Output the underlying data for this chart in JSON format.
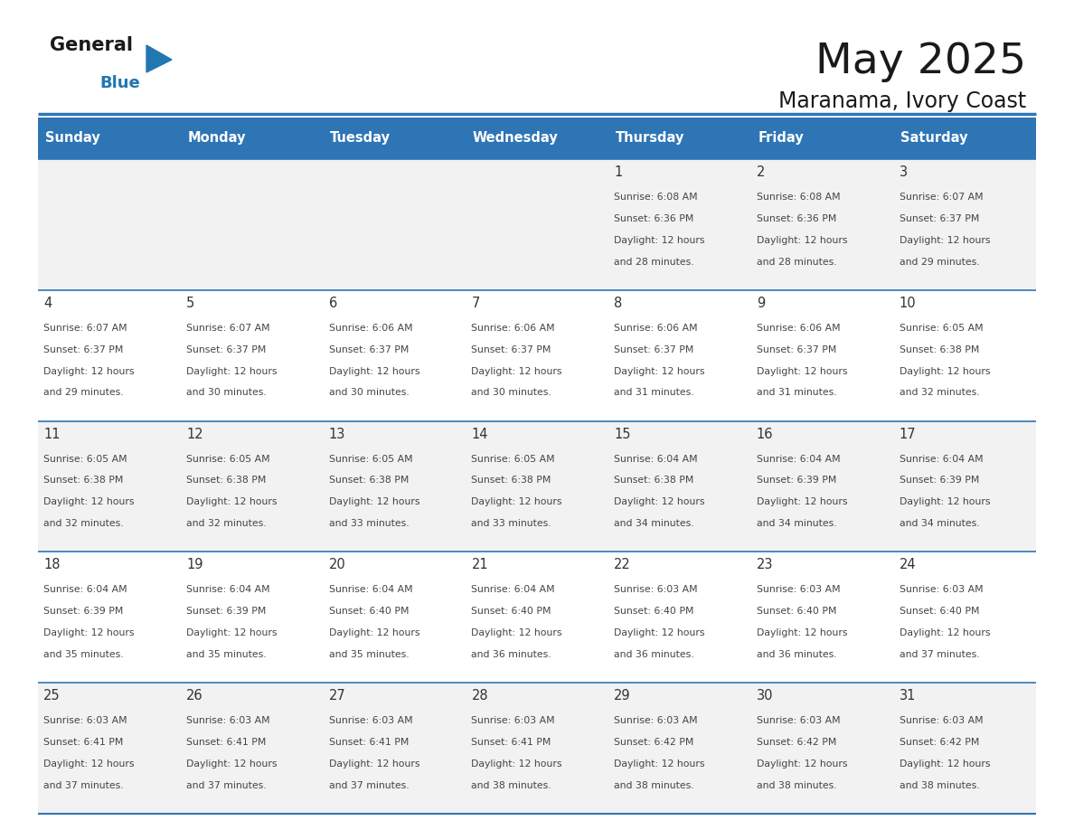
{
  "title": "May 2025",
  "subtitle": "Maranama, Ivory Coast",
  "days_of_week": [
    "Sunday",
    "Monday",
    "Tuesday",
    "Wednesday",
    "Thursday",
    "Friday",
    "Saturday"
  ],
  "header_bg": "#2E75B6",
  "header_text_color": "#FFFFFF",
  "cell_bg_odd": "#F2F2F2",
  "cell_bg_even": "#FFFFFF",
  "border_color": "#2E75B6",
  "day_number_color": "#333333",
  "cell_text_color": "#444444",
  "title_color": "#1a1a1a",
  "subtitle_color": "#1a1a1a",
  "logo_text_color": "#1a1a1a",
  "logo_blue_color": "#2177B0",
  "calendar_data": [
    [
      null,
      null,
      null,
      null,
      {
        "day": 1,
        "sunrise": "6:08 AM",
        "sunset": "6:36 PM",
        "daylight_line1": "Daylight: 12 hours",
        "daylight_line2": "and 28 minutes."
      },
      {
        "day": 2,
        "sunrise": "6:08 AM",
        "sunset": "6:36 PM",
        "daylight_line1": "Daylight: 12 hours",
        "daylight_line2": "and 28 minutes."
      },
      {
        "day": 3,
        "sunrise": "6:07 AM",
        "sunset": "6:37 PM",
        "daylight_line1": "Daylight: 12 hours",
        "daylight_line2": "and 29 minutes."
      }
    ],
    [
      {
        "day": 4,
        "sunrise": "6:07 AM",
        "sunset": "6:37 PM",
        "daylight_line1": "Daylight: 12 hours",
        "daylight_line2": "and 29 minutes."
      },
      {
        "day": 5,
        "sunrise": "6:07 AM",
        "sunset": "6:37 PM",
        "daylight_line1": "Daylight: 12 hours",
        "daylight_line2": "and 30 minutes."
      },
      {
        "day": 6,
        "sunrise": "6:06 AM",
        "sunset": "6:37 PM",
        "daylight_line1": "Daylight: 12 hours",
        "daylight_line2": "and 30 minutes."
      },
      {
        "day": 7,
        "sunrise": "6:06 AM",
        "sunset": "6:37 PM",
        "daylight_line1": "Daylight: 12 hours",
        "daylight_line2": "and 30 minutes."
      },
      {
        "day": 8,
        "sunrise": "6:06 AM",
        "sunset": "6:37 PM",
        "daylight_line1": "Daylight: 12 hours",
        "daylight_line2": "and 31 minutes."
      },
      {
        "day": 9,
        "sunrise": "6:06 AM",
        "sunset": "6:37 PM",
        "daylight_line1": "Daylight: 12 hours",
        "daylight_line2": "and 31 minutes."
      },
      {
        "day": 10,
        "sunrise": "6:05 AM",
        "sunset": "6:38 PM",
        "daylight_line1": "Daylight: 12 hours",
        "daylight_line2": "and 32 minutes."
      }
    ],
    [
      {
        "day": 11,
        "sunrise": "6:05 AM",
        "sunset": "6:38 PM",
        "daylight_line1": "Daylight: 12 hours",
        "daylight_line2": "and 32 minutes."
      },
      {
        "day": 12,
        "sunrise": "6:05 AM",
        "sunset": "6:38 PM",
        "daylight_line1": "Daylight: 12 hours",
        "daylight_line2": "and 32 minutes."
      },
      {
        "day": 13,
        "sunrise": "6:05 AM",
        "sunset": "6:38 PM",
        "daylight_line1": "Daylight: 12 hours",
        "daylight_line2": "and 33 minutes."
      },
      {
        "day": 14,
        "sunrise": "6:05 AM",
        "sunset": "6:38 PM",
        "daylight_line1": "Daylight: 12 hours",
        "daylight_line2": "and 33 minutes."
      },
      {
        "day": 15,
        "sunrise": "6:04 AM",
        "sunset": "6:38 PM",
        "daylight_line1": "Daylight: 12 hours",
        "daylight_line2": "and 34 minutes."
      },
      {
        "day": 16,
        "sunrise": "6:04 AM",
        "sunset": "6:39 PM",
        "daylight_line1": "Daylight: 12 hours",
        "daylight_line2": "and 34 minutes."
      },
      {
        "day": 17,
        "sunrise": "6:04 AM",
        "sunset": "6:39 PM",
        "daylight_line1": "Daylight: 12 hours",
        "daylight_line2": "and 34 minutes."
      }
    ],
    [
      {
        "day": 18,
        "sunrise": "6:04 AM",
        "sunset": "6:39 PM",
        "daylight_line1": "Daylight: 12 hours",
        "daylight_line2": "and 35 minutes."
      },
      {
        "day": 19,
        "sunrise": "6:04 AM",
        "sunset": "6:39 PM",
        "daylight_line1": "Daylight: 12 hours",
        "daylight_line2": "and 35 minutes."
      },
      {
        "day": 20,
        "sunrise": "6:04 AM",
        "sunset": "6:40 PM",
        "daylight_line1": "Daylight: 12 hours",
        "daylight_line2": "and 35 minutes."
      },
      {
        "day": 21,
        "sunrise": "6:04 AM",
        "sunset": "6:40 PM",
        "daylight_line1": "Daylight: 12 hours",
        "daylight_line2": "and 36 minutes."
      },
      {
        "day": 22,
        "sunrise": "6:03 AM",
        "sunset": "6:40 PM",
        "daylight_line1": "Daylight: 12 hours",
        "daylight_line2": "and 36 minutes."
      },
      {
        "day": 23,
        "sunrise": "6:03 AM",
        "sunset": "6:40 PM",
        "daylight_line1": "Daylight: 12 hours",
        "daylight_line2": "and 36 minutes."
      },
      {
        "day": 24,
        "sunrise": "6:03 AM",
        "sunset": "6:40 PM",
        "daylight_line1": "Daylight: 12 hours",
        "daylight_line2": "and 37 minutes."
      }
    ],
    [
      {
        "day": 25,
        "sunrise": "6:03 AM",
        "sunset": "6:41 PM",
        "daylight_line1": "Daylight: 12 hours",
        "daylight_line2": "and 37 minutes."
      },
      {
        "day": 26,
        "sunrise": "6:03 AM",
        "sunset": "6:41 PM",
        "daylight_line1": "Daylight: 12 hours",
        "daylight_line2": "and 37 minutes."
      },
      {
        "day": 27,
        "sunrise": "6:03 AM",
        "sunset": "6:41 PM",
        "daylight_line1": "Daylight: 12 hours",
        "daylight_line2": "and 37 minutes."
      },
      {
        "day": 28,
        "sunrise": "6:03 AM",
        "sunset": "6:41 PM",
        "daylight_line1": "Daylight: 12 hours",
        "daylight_line2": "and 38 minutes."
      },
      {
        "day": 29,
        "sunrise": "6:03 AM",
        "sunset": "6:42 PM",
        "daylight_line1": "Daylight: 12 hours",
        "daylight_line2": "and 38 minutes."
      },
      {
        "day": 30,
        "sunrise": "6:03 AM",
        "sunset": "6:42 PM",
        "daylight_line1": "Daylight: 12 hours",
        "daylight_line2": "and 38 minutes."
      },
      {
        "day": 31,
        "sunrise": "6:03 AM",
        "sunset": "6:42 PM",
        "daylight_line1": "Daylight: 12 hours",
        "daylight_line2": "and 38 minutes."
      }
    ]
  ]
}
